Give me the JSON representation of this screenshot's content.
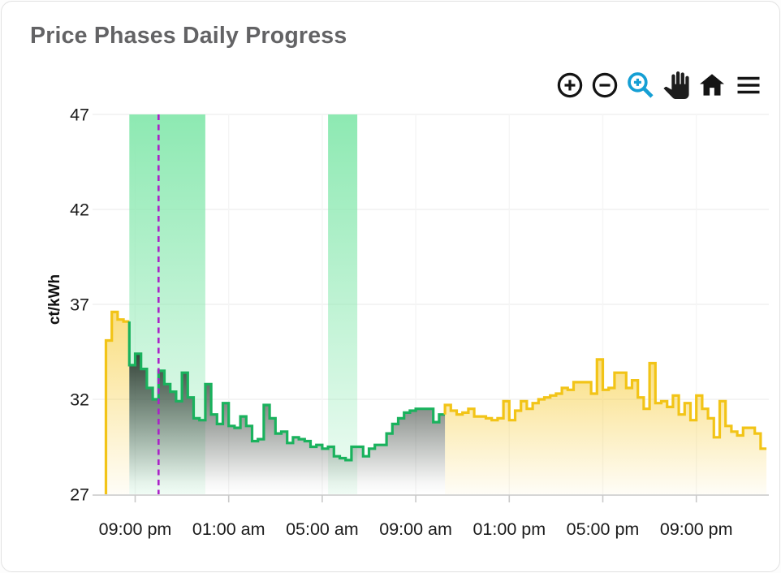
{
  "header": {
    "title": "Price Phases Daily Progress"
  },
  "toolbar": {
    "icon_color": "#141414",
    "active_color": "#159fd4",
    "buttons": [
      {
        "name": "zoom-in"
      },
      {
        "name": "zoom-out"
      },
      {
        "name": "box-zoom",
        "active": true
      },
      {
        "name": "pan"
      },
      {
        "name": "home"
      },
      {
        "name": "menu"
      }
    ]
  },
  "chart_data": {
    "type": "area",
    "title": "Price Phases Daily Progress",
    "xlabel": "",
    "ylabel": "ct/kWh",
    "ylim": [
      27,
      47
    ],
    "y_ticks": [
      47,
      42,
      37,
      32,
      27
    ],
    "x_start_time": "07:45 pm",
    "interval_minutes": 15,
    "x_ticks": [
      {
        "label": "09:00 pm",
        "index": 5
      },
      {
        "label": "01:00 am",
        "index": 21
      },
      {
        "label": "05:00 am",
        "index": 37
      },
      {
        "label": "09:00 am",
        "index": 53
      },
      {
        "label": "01:00 pm",
        "index": 69
      },
      {
        "label": "05:00 pm",
        "index": 85
      },
      {
        "label": "09:00 pm",
        "index": 101
      }
    ],
    "grid": true,
    "legend": false,
    "values": [
      35.1,
      36.6,
      36.2,
      36.1,
      33.8,
      34.4,
      33.6,
      32.6,
      32.0,
      33.5,
      32.8,
      32.4,
      31.9,
      33.4,
      32.1,
      31.0,
      30.9,
      32.8,
      31.2,
      30.7,
      31.8,
      30.6,
      30.5,
      31.1,
      30.6,
      29.8,
      29.9,
      31.7,
      31.0,
      30.2,
      30.3,
      29.7,
      30.0,
      29.9,
      29.8,
      29.5,
      29.6,
      29.4,
      29.5,
      29.0,
      28.9,
      28.8,
      29.5,
      29.5,
      29.0,
      29.4,
      29.6,
      29.6,
      30.2,
      30.7,
      31.0,
      31.3,
      31.4,
      31.5,
      31.5,
      31.5,
      30.8,
      31.2,
      31.7,
      31.4,
      31.2,
      31.3,
      31.5,
      31.1,
      31.1,
      31.0,
      30.9,
      31.0,
      31.9,
      30.9,
      31.4,
      31.9,
      31.5,
      31.8,
      32.0,
      32.1,
      32.2,
      32.3,
      32.6,
      32.5,
      32.9,
      32.9,
      32.9,
      32.3,
      34.1,
      32.5,
      32.6,
      33.4,
      33.4,
      32.6,
      33.0,
      32.1,
      31.5,
      33.9,
      31.8,
      31.9,
      31.6,
      32.2,
      31.2,
      31.8,
      30.9,
      32.2,
      31.5,
      31.0,
      30.0,
      31.9,
      30.6,
      30.3,
      30.1,
      30.5,
      30.5,
      30.2,
      29.4
    ],
    "phases": [
      {
        "kind": "yellow",
        "start_index": 0,
        "end_index": 4
      },
      {
        "kind": "green",
        "start_index": 4,
        "end_index": 58
      },
      {
        "kind": "yellow",
        "start_index": 58,
        "end_index": 113
      }
    ],
    "bands": [
      {
        "start_index": 4,
        "end_index": 17
      },
      {
        "start_index": 38,
        "end_index": 43
      }
    ],
    "now_line": {
      "index": 9,
      "color": "#ab22c9",
      "style": "dashed"
    },
    "colors": {
      "yellow_line": "#f2c417",
      "yellow_fill": "#f6ca33",
      "green_line": "#1ab25d",
      "green_fill_dark": "#2a342c",
      "band": "#8de9b2",
      "grid": "#f0f0f0",
      "axis": "#c9c9c9",
      "tick_text": "#1b1b1b"
    }
  }
}
